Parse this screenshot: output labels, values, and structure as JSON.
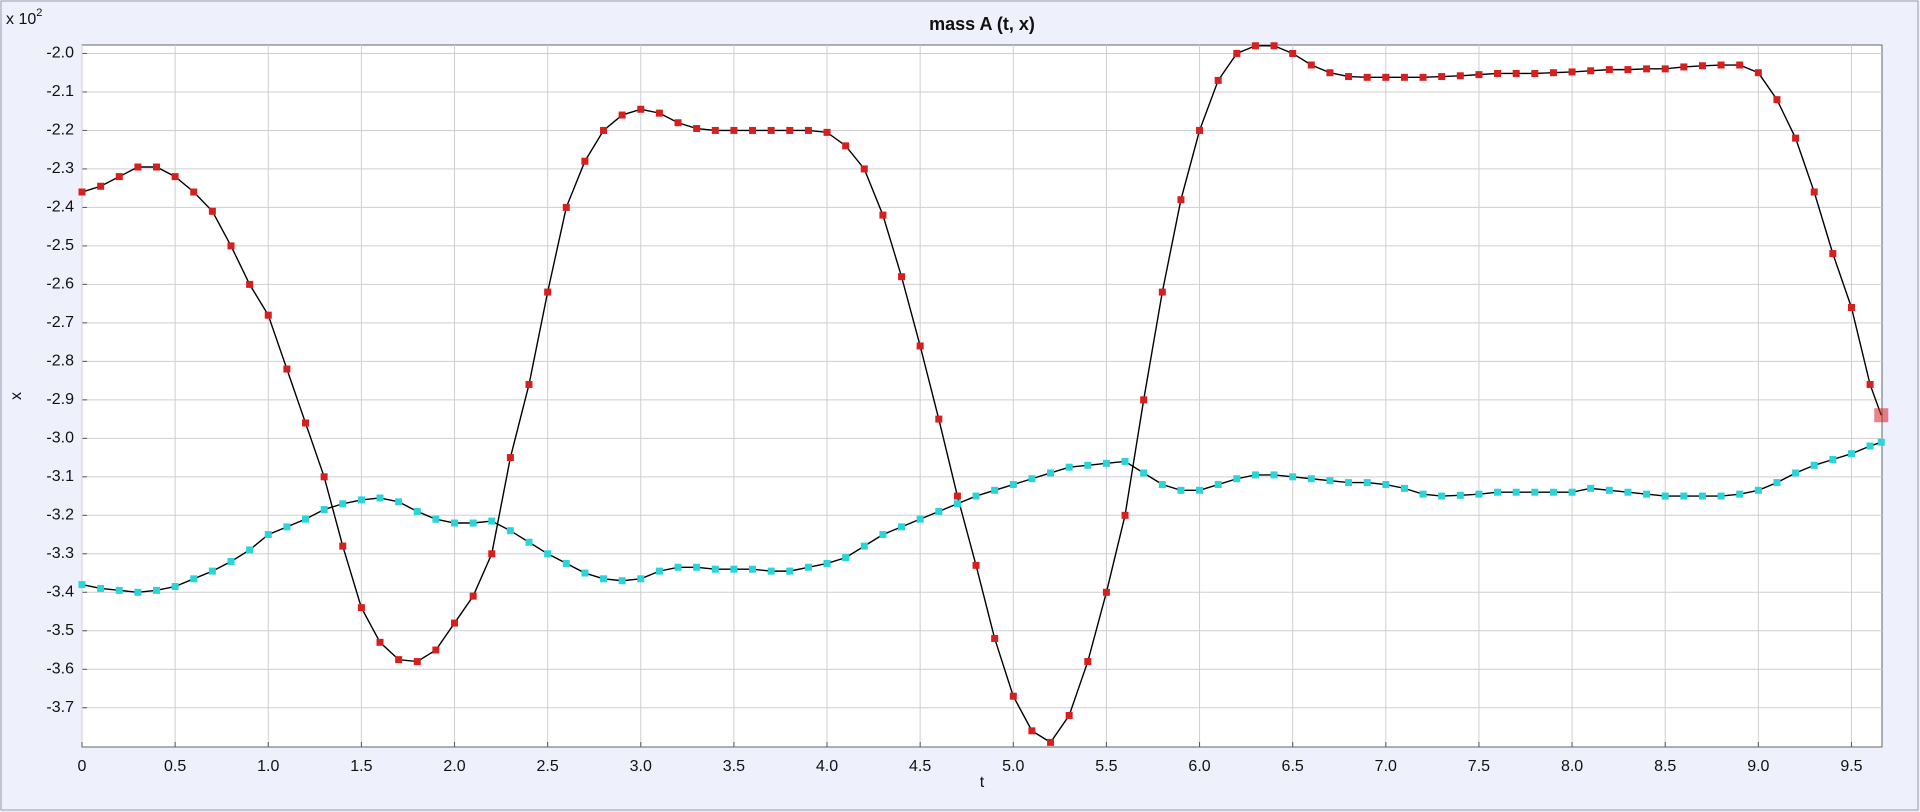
{
  "chart_data": {
    "type": "line",
    "title": "mass A (t, x)",
    "x_label": "t",
    "y_label": "x",
    "y_multiplier": {
      "base": "x 10",
      "exponent": "2"
    },
    "xlim": [
      0,
      9.664
    ],
    "ylim": [
      -3.802,
      -1.978
    ],
    "grid": true,
    "xticks": [
      0,
      0.5,
      {
        "value": 1,
        "label": "1.0"
      },
      1.5,
      {
        "value": 2,
        "label": "2.0"
      },
      2.5,
      {
        "value": 3,
        "label": "3.0"
      },
      3.5,
      {
        "value": 4,
        "label": "4.0"
      },
      4.5,
      {
        "value": 5,
        "label": "5.0"
      },
      5.5,
      {
        "value": 6,
        "label": "6.0"
      },
      6.5,
      {
        "value": 7,
        "label": "7.0"
      },
      7.5,
      {
        "value": 8,
        "label": "8.0"
      },
      8.5,
      {
        "value": 9,
        "label": "9.0"
      },
      9.5
    ],
    "yticks": [
      {
        "value": -2,
        "label": "-2.0"
      },
      -2.1,
      -2.2,
      -2.3,
      -2.4,
      -2.5,
      -2.6,
      -2.7,
      -2.8,
      -2.9,
      {
        "value": -3,
        "label": "-3.0"
      },
      -3.1,
      -3.2,
      -3.3,
      -3.4,
      -3.5,
      -3.6,
      -3.7
    ],
    "x": [
      0,
      0.1,
      0.2,
      0.3,
      0.4,
      0.5,
      0.6,
      0.7,
      0.8,
      0.9,
      1,
      1.1,
      1.2,
      1.3,
      1.4,
      1.5,
      1.6,
      1.7,
      1.8,
      1.9,
      2,
      2.1,
      2.2,
      2.3,
      2.4,
      2.5,
      2.6,
      2.7,
      2.8,
      2.9,
      3,
      3.1,
      3.2,
      3.3,
      3.4,
      3.5,
      3.6,
      3.7,
      3.8,
      3.9,
      4,
      4.1,
      4.2,
      4.3,
      4.4,
      4.5,
      4.6,
      4.7,
      4.8,
      4.9,
      5,
      5.1,
      5.2,
      5.3,
      5.4,
      5.5,
      5.6,
      5.7,
      5.8,
      5.9,
      6,
      6.1,
      6.2,
      6.3,
      6.4,
      6.5,
      6.6,
      6.7,
      6.8,
      6.9,
      7,
      7.1,
      7.2,
      7.3,
      7.4,
      7.5,
      7.6,
      7.7,
      7.8,
      7.9,
      8,
      8.1,
      8.2,
      8.3,
      8.4,
      8.5,
      8.6,
      8.7,
      8.8,
      8.9,
      9,
      9.1,
      9.2,
      9.3,
      9.4,
      9.5,
      9.6,
      9.66
    ],
    "series": [
      {
        "color": "#d62020",
        "line_color": "#000000",
        "values": [
          -2.36,
          -2.345,
          -2.32,
          -2.295,
          -2.295,
          -2.32,
          -2.36,
          -2.41,
          -2.5,
          -2.6,
          -2.68,
          -2.82,
          -2.96,
          -3.1,
          -3.28,
          -3.44,
          -3.53,
          -3.575,
          -3.58,
          -3.55,
          -3.48,
          -3.41,
          -3.3,
          -3.05,
          -2.86,
          -2.62,
          -2.4,
          -2.28,
          -2.2,
          -2.16,
          -2.145,
          -2.155,
          -2.18,
          -2.195,
          -2.2,
          -2.2,
          -2.2,
          -2.2,
          -2.2,
          -2.2,
          -2.205,
          -2.24,
          -2.3,
          -2.42,
          -2.58,
          -2.76,
          -2.95,
          -3.15,
          -3.33,
          -3.52,
          -3.67,
          -3.76,
          -3.79,
          -3.72,
          -3.58,
          -3.4,
          -3.2,
          -2.9,
          -2.62,
          -2.38,
          -2.2,
          -2.07,
          -2.0,
          -1.98,
          -1.98,
          -2.0,
          -2.03,
          -2.05,
          -2.06,
          -2.062,
          -2.062,
          -2.062,
          -2.062,
          -2.06,
          -2.058,
          -2.055,
          -2.052,
          -2.052,
          -2.052,
          -2.05,
          -2.048,
          -2.045,
          -2.042,
          -2.042,
          -2.04,
          -2.04,
          -2.035,
          -2.032,
          -2.03,
          -2.03,
          -2.05,
          -2.12,
          -2.22,
          -2.36,
          -2.52,
          -2.66,
          -2.86,
          -2.94
        ]
      },
      {
        "color": "#2ad4d8",
        "line_color": "#000000",
        "values": [
          -3.38,
          -3.39,
          -3.395,
          -3.4,
          -3.395,
          -3.385,
          -3.365,
          -3.345,
          -3.32,
          -3.29,
          -3.25,
          -3.23,
          -3.21,
          -3.185,
          -3.17,
          -3.16,
          -3.155,
          -3.165,
          -3.19,
          -3.21,
          -3.22,
          -3.22,
          -3.215,
          -3.24,
          -3.27,
          -3.3,
          -3.325,
          -3.35,
          -3.365,
          -3.37,
          -3.365,
          -3.345,
          -3.335,
          -3.335,
          -3.34,
          -3.34,
          -3.34,
          -3.345,
          -3.345,
          -3.335,
          -3.325,
          -3.31,
          -3.28,
          -3.25,
          -3.23,
          -3.21,
          -3.19,
          -3.17,
          -3.15,
          -3.135,
          -3.12,
          -3.105,
          -3.09,
          -3.075,
          -3.07,
          -3.065,
          -3.06,
          -3.09,
          -3.12,
          -3.135,
          -3.135,
          -3.12,
          -3.105,
          -3.095,
          -3.095,
          -3.1,
          -3.105,
          -3.11,
          -3.115,
          -3.115,
          -3.12,
          -3.13,
          -3.145,
          -3.15,
          -3.148,
          -3.145,
          -3.14,
          -3.14,
          -3.14,
          -3.14,
          -3.14,
          -3.13,
          -3.135,
          -3.14,
          -3.145,
          -3.15,
          -3.15,
          -3.15,
          -3.15,
          -3.145,
          -3.135,
          -3.115,
          -3.09,
          -3.07,
          -3.055,
          -3.04,
          -3.02,
          -3.01
        ]
      }
    ]
  }
}
